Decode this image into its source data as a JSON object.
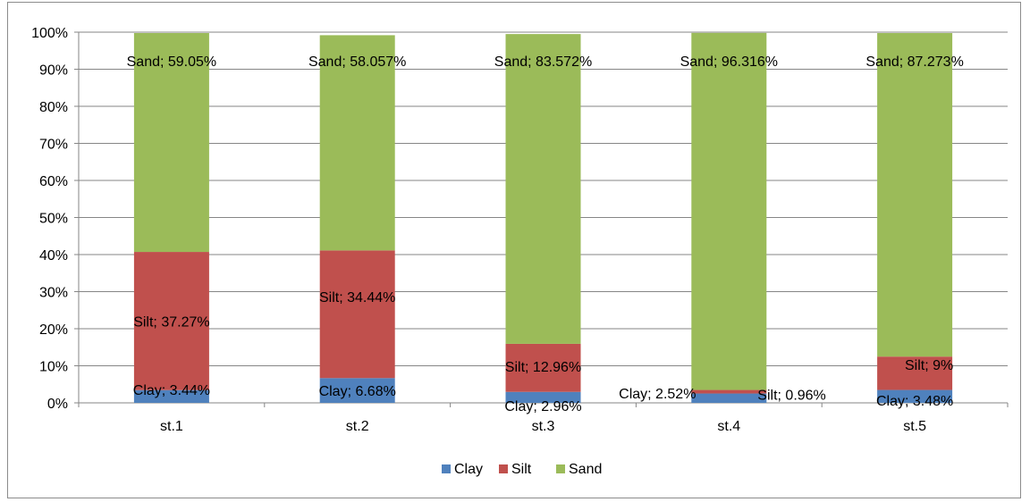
{
  "chart_data": {
    "type": "bar",
    "stacked": "percent",
    "categories": [
      "st.1",
      "st.2",
      "st.3",
      "st.4",
      "st.5"
    ],
    "ylim": [
      0,
      100
    ],
    "yticks": [
      "0%",
      "10%",
      "20%",
      "30%",
      "40%",
      "50%",
      "60%",
      "70%",
      "80%",
      "90%",
      "100%"
    ],
    "grid": true,
    "legend": "bottom",
    "title": "",
    "xlabel": "",
    "ylabel": "",
    "series": [
      {
        "name": "Clay",
        "color": "#4f81bd",
        "values": [
          3.44,
          6.68,
          2.96,
          2.52,
          3.48
        ],
        "labels": [
          "Clay; 3.44%",
          "Clay; 6.68%",
          "Clay; 2.96%",
          "Clay; 2.52%",
          "Clay; 3.48%"
        ]
      },
      {
        "name": "Silt",
        "color": "#c0504d",
        "values": [
          37.27,
          34.44,
          12.96,
          0.96,
          9
        ],
        "labels": [
          "Silt; 37.27%",
          "Silt; 34.44%",
          "Silt; 12.96%",
          "Silt; 0.96%",
          "Silt; 9%"
        ]
      },
      {
        "name": "Sand",
        "color": "#9bbb59",
        "values": [
          59.05,
          58.057,
          83.572,
          96.316,
          87.273
        ],
        "labels": [
          "Sand; 59.05%",
          "Sand; 58.057%",
          "Sand; 83.572%",
          "Sand; 96.316%",
          "Sand; 87.273%"
        ]
      }
    ]
  }
}
